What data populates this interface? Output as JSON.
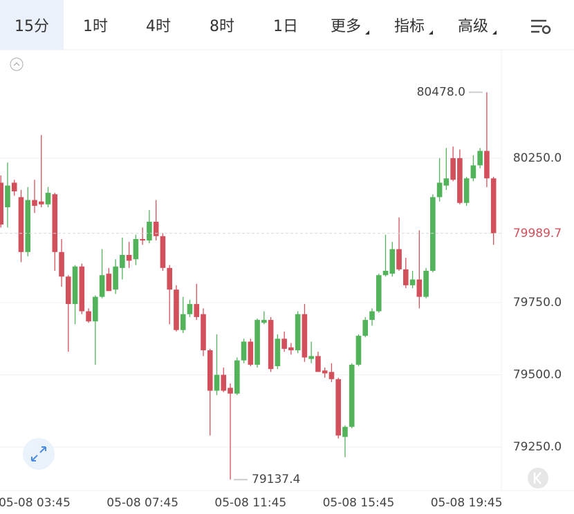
{
  "tabs": [
    "15分",
    "1时",
    "4时",
    "8时",
    "1日",
    "更多",
    "指标",
    "高级"
  ],
  "chart_data": {
    "type": "candlestick",
    "categories": [
      null,
      null,
      null,
      null,
      null,
      "05-08 03:45",
      null,
      null,
      null,
      null,
      null,
      null,
      null,
      null,
      null,
      null,
      null,
      null,
      null,
      null,
      null,
      "05-08 07:45",
      null,
      null,
      null,
      null,
      null,
      null,
      null,
      null,
      null,
      null,
      null,
      null,
      null,
      null,
      null,
      "05-08 11:45",
      null,
      null,
      null,
      null,
      null,
      null,
      null,
      null,
      null,
      null,
      null,
      null,
      null,
      null,
      null,
      "05-08 15:45",
      null,
      null,
      null,
      null,
      null,
      null,
      null,
      null,
      null,
      null,
      null,
      null,
      null,
      null,
      null,
      "05-08 19:45",
      null,
      null,
      null,
      null
    ],
    "open": [
      80165,
      80080,
      80165,
      80115,
      79925,
      80105,
      80100,
      80090,
      80125,
      79925,
      79840,
      79745,
      79875,
      79720,
      79685,
      79770,
      79850,
      79795,
      79870,
      79915,
      79900,
      79970,
      79965,
      80030,
      79980,
      79870,
      79795,
      79655,
      79710,
      79745,
      79710,
      79585,
      79445,
      79500,
      79455,
      79435,
      79550,
      79615,
      79535,
      79680,
      79690,
      79530,
      79625,
      79595,
      79585,
      79710,
      79555,
      79565,
      79515,
      79510,
      79485,
      79285,
      79320,
      79535,
      79635,
      79690,
      79720,
      79845,
      79850,
      79935,
      79865,
      79810,
      79830,
      79770,
      79860,
      80115,
      80155,
      80250,
      80250,
      80095,
      80180,
      80225,
      80275,
      80180
    ],
    "high": [
      80190,
      80235,
      80175,
      80140,
      80150,
      80175,
      80330,
      80150,
      80130,
      79970,
      79845,
      79880,
      79885,
      79730,
      79775,
      79935,
      79870,
      79900,
      79975,
      79960,
      79985,
      80010,
      80070,
      80105,
      79990,
      79880,
      79810,
      79770,
      79760,
      79815,
      79730,
      79590,
      79640,
      79525,
      79470,
      79560,
      79625,
      79625,
      79695,
      79720,
      79700,
      79640,
      79650,
      79610,
      79720,
      79745,
      79615,
      79580,
      79525,
      79540,
      79490,
      79325,
      79540,
      79640,
      79700,
      79730,
      79850,
      79985,
      79960,
      80045,
      79905,
      79860,
      80000,
      79870,
      80125,
      80250,
      80285,
      80290,
      80280,
      80185,
      80260,
      80285,
      80478.0,
      80185
    ],
    "low": [
      80010,
      80010,
      80120,
      79890,
      79910,
      80060,
      80080,
      80080,
      79860,
      79805,
      79580,
      79675,
      79710,
      79680,
      79535,
      79765,
      79790,
      79780,
      79830,
      79870,
      79880,
      79950,
      79955,
      79965,
      79860,
      79675,
      79650,
      79645,
      79700,
      79690,
      79565,
      79290,
      79430,
      79440,
      79137.4,
      79430,
      79540,
      79530,
      79525,
      79675,
      79510,
      79520,
      79580,
      79570,
      79575,
      79545,
      79540,
      79510,
      79490,
      79475,
      79280,
      79215,
      79315,
      79530,
      79630,
      79670,
      79715,
      79840,
      79840,
      79860,
      79800,
      79800,
      79730,
      79765,
      79855,
      80100,
      80140,
      80170,
      80090,
      80085,
      80170,
      80215,
      80150,
      79950
    ],
    "close": [
      80020,
      80155,
      80135,
      79925,
      80105,
      80085,
      80090,
      80130,
      79925,
      79840,
      79745,
      79875,
      79720,
      79685,
      79770,
      79845,
      79790,
      79875,
      79915,
      79895,
      79970,
      79965,
      80030,
      79980,
      79870,
      79795,
      79655,
      79710,
      79745,
      79700,
      79585,
      79445,
      79500,
      79445,
      79435,
      79550,
      79615,
      79535,
      79690,
      79690,
      79520,
      79625,
      79590,
      79585,
      79710,
      79560,
      79565,
      79510,
      79505,
      79485,
      79290,
      79320,
      79535,
      79635,
      79690,
      79720,
      79845,
      79860,
      79935,
      79865,
      79810,
      79830,
      79770,
      79860,
      80115,
      80165,
      80180,
      80175,
      80095,
      80180,
      80225,
      80275,
      80180,
      79989.7
    ],
    "up_color": "#52b35b",
    "down_color": "#d2505b",
    "high_label": "80478.0",
    "ylim": [
      79102,
      80618
    ],
    "yticks": [
      {
        "value": 79250,
        "label": "79250.0"
      },
      {
        "value": 79500,
        "label": "79500.0"
      },
      {
        "value": 79750,
        "label": "79750.0"
      },
      {
        "value": 80250,
        "label": "80250.0"
      }
    ],
    "grid": true
  }
}
